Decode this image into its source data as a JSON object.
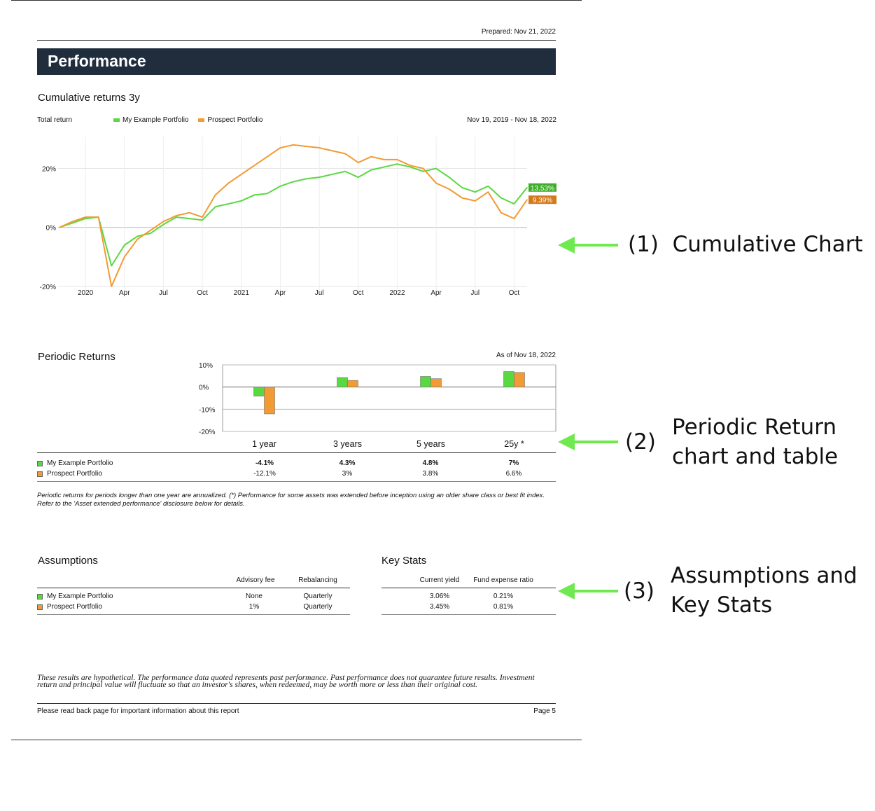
{
  "header": {
    "prepared": "Prepared: Nov 21, 2022",
    "title": "Performance"
  },
  "cumulative": {
    "title": "Cumulative returns 3y",
    "label_left": "Total return",
    "date_range": "Nov 19, 2019 - Nov 18, 2022",
    "end_labels": [
      "13.53%",
      "9.39%"
    ]
  },
  "legend": [
    {
      "name": "My Example Portfolio",
      "color": "#5ad841"
    },
    {
      "name": "Prospect Portfolio",
      "color": "#f29a33"
    }
  ],
  "periodic": {
    "title": "Periodic Returns",
    "as_of": "As of Nov 18, 2022",
    "rows": [
      {
        "name": "My Example Portfolio",
        "values": [
          "-4.1%",
          "4.3%",
          "4.8%",
          "7%"
        ]
      },
      {
        "name": "Prospect Portfolio",
        "values": [
          "-12.1%",
          "3%",
          "3.8%",
          "6.6%"
        ]
      }
    ],
    "note": "Periodic returns for periods longer than one year are annualized. (*) Performance for some assets was extended before inception using an older share class or best fit index. Refer to the 'Asset extended performance' disclosure below for details."
  },
  "assumptions": {
    "title": "Assumptions",
    "headers": [
      "Advisory fee",
      "Rebalancing"
    ],
    "rows": [
      {
        "name": "My Example Portfolio",
        "values": [
          "None",
          "Quarterly"
        ]
      },
      {
        "name": "Prospect Portfolio",
        "values": [
          "1%",
          "Quarterly"
        ]
      }
    ]
  },
  "keystats": {
    "title": "Key Stats",
    "headers": [
      "Current yield",
      "Fund expense ratio"
    ],
    "rows": [
      {
        "values": [
          "3.06%",
          "0.21%"
        ]
      },
      {
        "values": [
          "3.45%",
          "0.81%"
        ]
      }
    ]
  },
  "footer": {
    "disclaimer": "These results are hypothetical. The performance data quoted represents past performance. Past performance does not guarantee future results. Investment return and principal value will fluctuate so that an investor's shares, when redeemed, may be worth more or less than their original cost.",
    "left": "Please read back page for important information about this report",
    "page": "Page 5"
  },
  "annotations": {
    "a1": "(1)  Cumulative Chart",
    "a2_num": "(2)",
    "a2_line1": "Periodic Return",
    "a2_line2": "chart and table",
    "a3_num": "(3)",
    "a3_line1": "Assumptions and",
    "a3_line2": "Key Stats",
    "arrow_color": "#6ee94f"
  },
  "chart_data": [
    {
      "type": "line",
      "title": "Cumulative returns 3y",
      "ylabel": "Total return",
      "yticks": [
        "20%",
        "0%",
        "-20%"
      ],
      "ylim": [
        -25,
        32
      ],
      "xticks": [
        "2020",
        "Apr",
        "Jul",
        "Oct",
        "2021",
        "Apr",
        "Jul",
        "Oct",
        "2022",
        "Apr",
        "Jul",
        "Oct"
      ],
      "x": [
        "2019-11",
        "2019-12",
        "2020-01",
        "2020-02",
        "2020-03",
        "2020-04",
        "2020-05",
        "2020-06",
        "2020-07",
        "2020-08",
        "2020-09",
        "2020-10",
        "2020-11",
        "2020-12",
        "2021-01",
        "2021-02",
        "2021-03",
        "2021-04",
        "2021-05",
        "2021-06",
        "2021-07",
        "2021-08",
        "2021-09",
        "2021-10",
        "2021-11",
        "2021-12",
        "2022-01",
        "2022-02",
        "2022-03",
        "2022-04",
        "2022-05",
        "2022-06",
        "2022-07",
        "2022-08",
        "2022-09",
        "2022-10",
        "2022-11"
      ],
      "series": [
        {
          "name": "My Example Portfolio",
          "values": [
            0,
            1.5,
            3,
            3.5,
            -13,
            -6,
            -3,
            -2,
            1,
            3.5,
            3,
            2.5,
            7,
            8,
            9,
            11,
            11.5,
            14,
            15.5,
            16.5,
            17,
            18,
            19,
            17,
            19.5,
            20.5,
            21.5,
            20.5,
            19,
            20,
            17,
            13.5,
            12,
            14,
            10,
            8,
            13.53
          ]
        },
        {
          "name": "Prospect Portfolio",
          "values": [
            0,
            2,
            3.5,
            3.5,
            -20,
            -10,
            -4,
            -1,
            2,
            4,
            5,
            3.5,
            11,
            15,
            18,
            21,
            24,
            27,
            28,
            27.5,
            27,
            26,
            25,
            22,
            24,
            23,
            23,
            21,
            20,
            15,
            13,
            10,
            9,
            12,
            5,
            3,
            9.39
          ]
        }
      ]
    },
    {
      "type": "bar",
      "title": "Periodic Returns",
      "categories": [
        "1 year",
        "3 years",
        "5 years",
        "25y *"
      ],
      "yticks": [
        "10%",
        "0%",
        "-10%",
        "-20%"
      ],
      "ylim": [
        -20,
        10
      ],
      "series": [
        {
          "name": "My Example Portfolio",
          "values": [
            -4.1,
            4.3,
            4.8,
            7
          ]
        },
        {
          "name": "Prospect Portfolio",
          "values": [
            -12.1,
            3,
            3.8,
            6.6
          ]
        }
      ]
    }
  ]
}
